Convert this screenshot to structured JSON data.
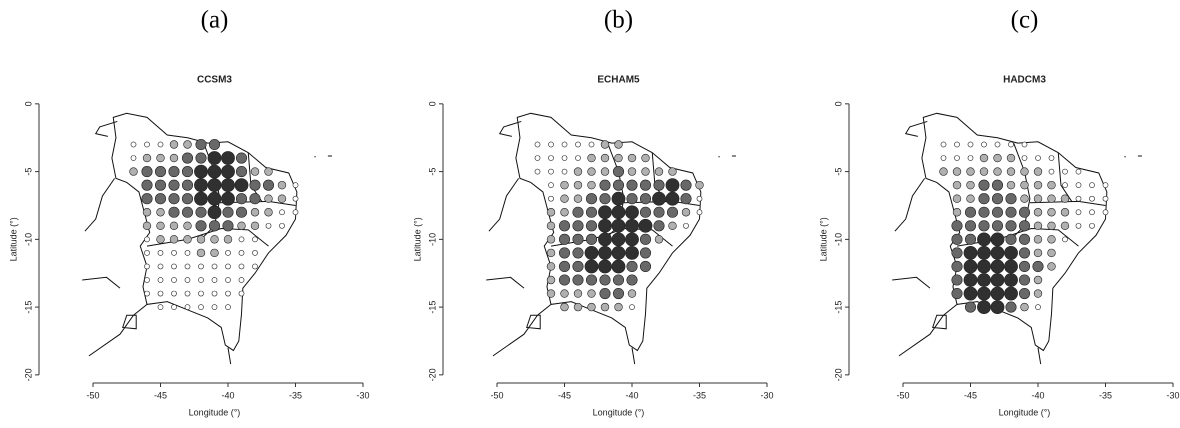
{
  "chart_data": [
    {
      "type": "bubble-map",
      "panel_label": "(a)",
      "title": "CCSM3",
      "x_label": "Longitude (°)",
      "y_label": "Latitude (°)",
      "xlim": [
        -54,
        -29
      ],
      "ylim": [
        -20.6,
        0.8
      ],
      "xticks": [
        -50,
        -45,
        -40,
        -35,
        -30
      ],
      "yticks": [
        0,
        -5,
        -10,
        -15,
        -20
      ],
      "lon": [
        -47,
        -46,
        -45,
        -44,
        -43,
        -42,
        -41,
        -40,
        -39,
        -38,
        -37,
        -36,
        -35
      ],
      "lat": [
        -3,
        -4,
        -5,
        -6,
        -7,
        -8,
        -9,
        -10,
        -11,
        -12,
        -13,
        -14,
        -15
      ],
      "sizes": [
        [
          1,
          1,
          1,
          2,
          2,
          3,
          3,
          null,
          null,
          null,
          null,
          null,
          null
        ],
        [
          1,
          2,
          2,
          2,
          3,
          3,
          4,
          4,
          3,
          null,
          null,
          null,
          null
        ],
        [
          2,
          3,
          3,
          3,
          3,
          4,
          4,
          4,
          3,
          2,
          2,
          null,
          null
        ],
        [
          null,
          3,
          3,
          3,
          3,
          4,
          4,
          4,
          4,
          3,
          3,
          2,
          1
        ],
        [
          null,
          3,
          3,
          3,
          3,
          4,
          4,
          4,
          3,
          3,
          2,
          2,
          1
        ],
        [
          null,
          2,
          2,
          3,
          3,
          3,
          4,
          3,
          3,
          2,
          2,
          1,
          1
        ],
        [
          null,
          2,
          2,
          2,
          2,
          3,
          3,
          3,
          2,
          2,
          1,
          1,
          null
        ],
        [
          null,
          1,
          2,
          2,
          2,
          2,
          2,
          2,
          1,
          1,
          null,
          null,
          null
        ],
        [
          null,
          1,
          1,
          1,
          1,
          2,
          2,
          1,
          1,
          1,
          null,
          null,
          null
        ],
        [
          null,
          1,
          1,
          1,
          1,
          1,
          1,
          1,
          1,
          1,
          null,
          null,
          null
        ],
        [
          null,
          1,
          1,
          1,
          1,
          1,
          1,
          1,
          1,
          null,
          null,
          null,
          null
        ],
        [
          null,
          1,
          1,
          1,
          1,
          1,
          1,
          1,
          1,
          null,
          null,
          null,
          null
        ],
        [
          null,
          null,
          1,
          1,
          1,
          1,
          1,
          1,
          null,
          null,
          null,
          null,
          null
        ]
      ]
    },
    {
      "type": "bubble-map",
      "panel_label": "(b)",
      "title": "ECHAM5",
      "x_label": "Longitude (°)",
      "y_label": "Latitude (°)",
      "xlim": [
        -54,
        -29
      ],
      "ylim": [
        -20.6,
        0.8
      ],
      "xticks": [
        -50,
        -45,
        -40,
        -35,
        -30
      ],
      "yticks": [
        0,
        -5,
        -10,
        -15,
        -20
      ],
      "lon": [
        -47,
        -46,
        -45,
        -44,
        -43,
        -42,
        -41,
        -40,
        -39,
        -38,
        -37,
        -36,
        -35
      ],
      "lat": [
        -3,
        -4,
        -5,
        -6,
        -7,
        -8,
        -9,
        -10,
        -11,
        -12,
        -13,
        -14,
        -15
      ],
      "sizes": [
        [
          1,
          1,
          1,
          1,
          1,
          2,
          2,
          null,
          null,
          null,
          null,
          null,
          null
        ],
        [
          1,
          1,
          1,
          1,
          2,
          2,
          2,
          2,
          2,
          null,
          null,
          null,
          null
        ],
        [
          1,
          1,
          1,
          2,
          2,
          2,
          3,
          2,
          2,
          2,
          2,
          null,
          null
        ],
        [
          null,
          1,
          2,
          2,
          2,
          3,
          3,
          3,
          3,
          3,
          4,
          3,
          2
        ],
        [
          null,
          1,
          2,
          2,
          3,
          3,
          4,
          3,
          3,
          4,
          4,
          3,
          1
        ],
        [
          null,
          2,
          2,
          3,
          3,
          4,
          4,
          4,
          3,
          3,
          3,
          2,
          1
        ],
        [
          null,
          2,
          3,
          3,
          3,
          4,
          4,
          4,
          4,
          3,
          2,
          1,
          null
        ],
        [
          null,
          2,
          3,
          3,
          3,
          4,
          4,
          4,
          3,
          2,
          null,
          null,
          null
        ],
        [
          null,
          2,
          3,
          3,
          4,
          4,
          4,
          4,
          3,
          null,
          null,
          null,
          null
        ],
        [
          null,
          2,
          3,
          3,
          4,
          4,
          4,
          3,
          3,
          null,
          null,
          null,
          null
        ],
        [
          null,
          2,
          3,
          3,
          3,
          3,
          3,
          3,
          null,
          null,
          null,
          null,
          null
        ],
        [
          null,
          2,
          2,
          2,
          2,
          3,
          3,
          2,
          null,
          null,
          null,
          null,
          null
        ],
        [
          null,
          null,
          2,
          2,
          2,
          2,
          2,
          1,
          null,
          null,
          null,
          null,
          null
        ]
      ]
    },
    {
      "type": "bubble-map",
      "panel_label": "(c)",
      "title": "HADCM3",
      "x_label": "Longitude (°)",
      "y_label": "Latitude (°)",
      "xlim": [
        -54,
        -29
      ],
      "ylim": [
        -20.6,
        0.8
      ],
      "xticks": [
        -50,
        -45,
        -40,
        -35,
        -30
      ],
      "yticks": [
        0,
        -5,
        -10,
        -15,
        -20
      ],
      "lon": [
        -47,
        -46,
        -45,
        -44,
        -43,
        -42,
        -41,
        -40,
        -39,
        -38,
        -37,
        -36,
        -35
      ],
      "lat": [
        -3,
        -4,
        -5,
        -6,
        -7,
        -8,
        -9,
        -10,
        -11,
        -12,
        -13,
        -14,
        -15
      ],
      "sizes": [
        [
          1,
          1,
          1,
          1,
          1,
          1,
          1,
          null,
          null,
          null,
          null,
          null,
          null
        ],
        [
          1,
          1,
          1,
          2,
          2,
          2,
          1,
          1,
          1,
          null,
          null,
          null,
          null
        ],
        [
          2,
          2,
          2,
          2,
          2,
          2,
          2,
          2,
          1,
          1,
          1,
          null,
          null
        ],
        [
          null,
          2,
          2,
          3,
          3,
          2,
          2,
          2,
          2,
          1,
          1,
          1,
          1
        ],
        [
          null,
          2,
          2,
          3,
          3,
          3,
          2,
          2,
          2,
          2,
          1,
          1,
          1
        ],
        [
          null,
          2,
          3,
          3,
          3,
          3,
          3,
          2,
          2,
          2,
          1,
          1,
          1
        ],
        [
          null,
          3,
          3,
          3,
          3,
          3,
          3,
          2,
          2,
          2,
          1,
          1,
          null
        ],
        [
          null,
          3,
          3,
          4,
          4,
          3,
          3,
          2,
          2,
          1,
          null,
          null,
          null
        ],
        [
          null,
          3,
          4,
          4,
          4,
          4,
          3,
          2,
          2,
          null,
          null,
          null,
          null
        ],
        [
          null,
          3,
          4,
          4,
          4,
          4,
          3,
          3,
          2,
          null,
          null,
          null,
          null
        ],
        [
          null,
          3,
          4,
          4,
          4,
          4,
          3,
          2,
          null,
          null,
          null,
          null,
          null
        ],
        [
          null,
          3,
          4,
          4,
          4,
          4,
          3,
          2,
          null,
          null,
          null,
          null,
          null
        ],
        [
          null,
          null,
          3,
          4,
          4,
          3,
          2,
          1,
          null,
          null,
          null,
          null,
          null
        ]
      ]
    }
  ]
}
